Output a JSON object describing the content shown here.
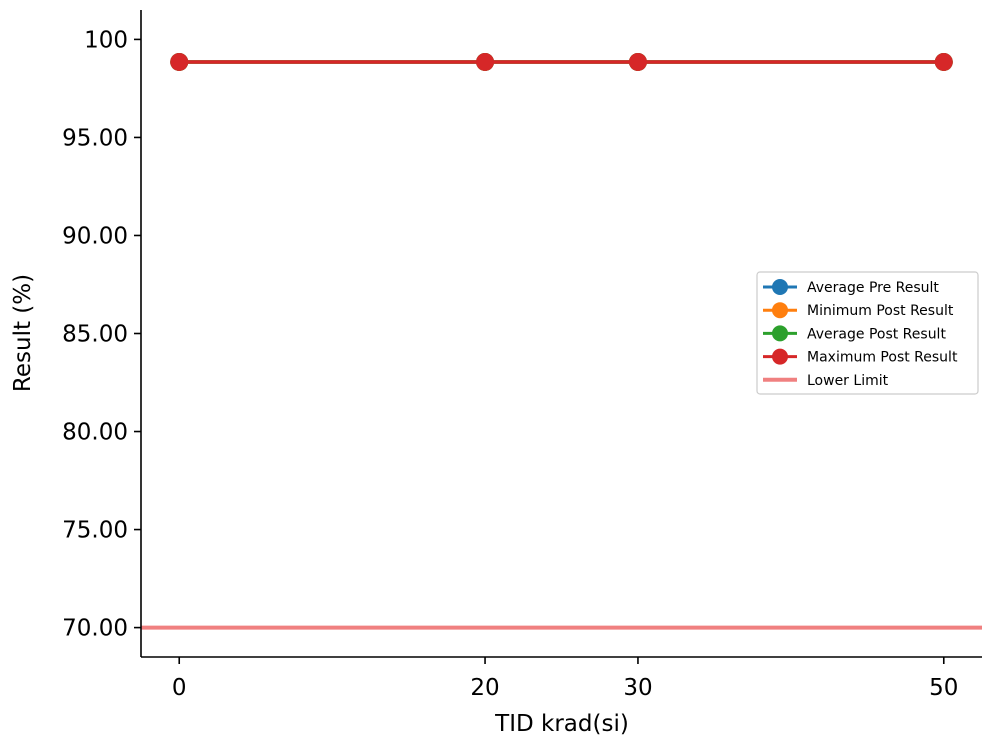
{
  "chart_data": {
    "type": "line",
    "x": [
      0,
      20,
      30,
      50
    ],
    "x_ticks": [
      0,
      20,
      30,
      50
    ],
    "x_tick_labels": [
      "0",
      "20",
      "30",
      "50"
    ],
    "xlim": [
      -2.5,
      52.5
    ],
    "ylim": [
      68.5,
      101.5
    ],
    "y_ticks": [
      70,
      75,
      80,
      85,
      90,
      95,
      100
    ],
    "y_tick_labels": [
      "70.00",
      "75.00",
      "80.00",
      "85.00",
      "90.00",
      "95.00",
      "100"
    ],
    "xlabel": "TID krad(si)",
    "ylabel": "Result (%)",
    "legend_position": "center-right",
    "series": [
      {
        "name": "Average Pre Result",
        "color": "#1f77b4",
        "marker": "circle",
        "values": [
          98.85,
          98.85,
          98.85,
          98.85
        ]
      },
      {
        "name": "Minimum Post Result",
        "color": "#ff7f0e",
        "marker": "circle",
        "values": [
          98.85,
          98.85,
          98.85,
          98.85
        ]
      },
      {
        "name": "Average Post Result",
        "color": "#2ca02c",
        "marker": "circle",
        "values": [
          98.85,
          98.85,
          98.85,
          98.85
        ]
      },
      {
        "name": "Maximum Post Result",
        "color": "#d62728",
        "marker": "circle",
        "values": [
          98.85,
          98.85,
          98.85,
          98.85
        ]
      }
    ],
    "hlines": [
      {
        "name": "Lower Limit",
        "color": "#f08080",
        "y": 70
      }
    ]
  }
}
